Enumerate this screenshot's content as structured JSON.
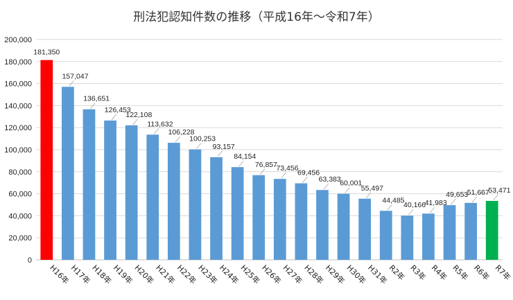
{
  "chart_data": {
    "type": "bar",
    "title": "刑法犯認知件数の推移（平成16年～令和7年）",
    "xlabel": "",
    "ylabel": "",
    "ylim": [
      0,
      200000
    ],
    "yticks": [
      0,
      20000,
      40000,
      60000,
      80000,
      100000,
      120000,
      140000,
      160000,
      180000,
      200000
    ],
    "ytick_labels": [
      "0",
      "20,000",
      "40,000",
      "60,000",
      "80,000",
      "100,000",
      "120,000",
      "140,000",
      "160,000",
      "180,000",
      "200,000"
    ],
    "categories": [
      "H16年",
      "H17年",
      "H18年",
      "H19年",
      "H20年",
      "H21年",
      "H22年",
      "H23年",
      "H24年",
      "H25年",
      "H26年",
      "H27年",
      "H28年",
      "H29年",
      "H30年",
      "H31年",
      "R2年",
      "R3年",
      "R4年",
      "R5年",
      "R6年",
      "R7年"
    ],
    "values": [
      181350,
      157047,
      136651,
      126453,
      122108,
      113632,
      106228,
      100253,
      93157,
      84154,
      76857,
      73456,
      69456,
      63383,
      60001,
      55497,
      44485,
      40166,
      41983,
      49653,
      51667,
      53471
    ],
    "value_labels": [
      "181,350",
      "157,047",
      "136,651",
      "126,453",
      "122,108",
      "113,632",
      "106,228",
      "100,253",
      "93,157",
      "84,154",
      "76,857",
      "73,456",
      "69,456",
      "63,383",
      "60,001",
      "55,497",
      "44,485",
      "40,166",
      "41,983",
      "49,653",
      "51,667",
      "53,471"
    ],
    "colors": {
      "default": "#5b9bd5",
      "first": "#ff0000",
      "last": "#00b050",
      "grid": "#d9d9d9",
      "axis": "#bfbfbf"
    },
    "grid": true,
    "legend": "none"
  }
}
